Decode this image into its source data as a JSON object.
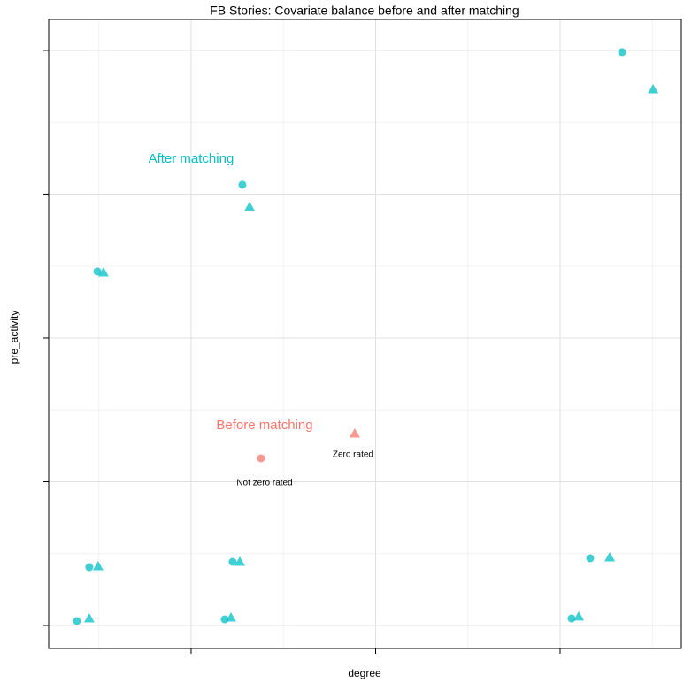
{
  "chart_data": {
    "type": "scatter",
    "title": "FB Stories: Covariate balance before and after matching",
    "x_label": "degree",
    "y_label": "pre_activity",
    "xlim": [
      0.228,
      3.657
    ],
    "ylim": [
      -0.16,
      4.215
    ],
    "xticks": [
      1,
      2,
      3
    ],
    "yticks": [
      0,
      1,
      2,
      3,
      4
    ],
    "grid": true,
    "series": [
      {
        "name": "After matching",
        "color": "#00bfc4",
        "groups": [
          {
            "shape": "circle",
            "x": [
              0.381,
              0.448,
              0.492,
              1.182,
              1.225,
              1.278,
              3.062,
              3.163,
              3.336
            ],
            "y": [
              0.031,
              0.406,
              2.462,
              0.043,
              0.443,
              3.065,
              0.049,
              0.468,
              3.988
            ]
          },
          {
            "shape": "triangle",
            "x": [
              0.448,
              0.496,
              0.525,
              1.216,
              1.264,
              1.317,
              3.101,
              3.269,
              3.504
            ],
            "y": [
              0.049,
              0.412,
              2.455,
              0.055,
              0.443,
              2.911,
              0.062,
              0.474,
              3.729
            ]
          }
        ]
      },
      {
        "name": "Before matching",
        "color": "#f8766d",
        "groups": [
          {
            "shape": "circle",
            "label": "Not zero rated",
            "x": [
              1.379
            ],
            "y": [
              1.163
            ]
          },
          {
            "shape": "triangle",
            "label": "Zero rated",
            "x": [
              1.887
            ],
            "y": [
              1.335
            ]
          }
        ]
      }
    ]
  }
}
